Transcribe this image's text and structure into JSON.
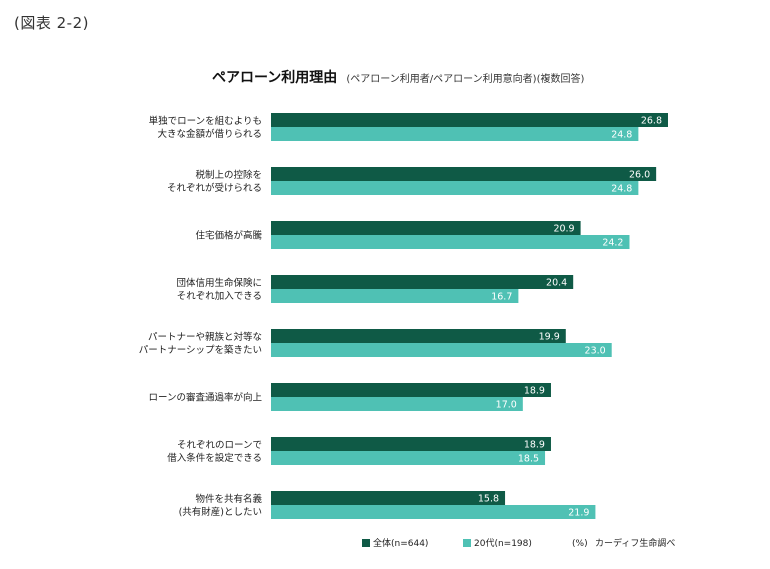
{
  "figure_label": "(図表 2-2)",
  "title": "ペアローン利用理由",
  "subtitle": "(ペアローン利用者/ペアローン利用意向者)(複数回答)",
  "chart_data": {
    "type": "bar",
    "orientation": "horizontal",
    "title": "ペアローン利用理由",
    "subtitle": "(ペアローン利用者/ペアローン利用意向者)(複数回答)",
    "unit": "(%)",
    "source": "カーディフ生命調べ",
    "categories": [
      [
        "単独でローンを組むよりも",
        "大きな金額が借りられる"
      ],
      [
        "税制上の控除を",
        "それぞれが受けられる"
      ],
      [
        "住宅価格が高騰"
      ],
      [
        "団体信用生命保険に",
        "それぞれ加入できる"
      ],
      [
        "パートナーや親族と対等な",
        "パートナーシップを築きたい"
      ],
      [
        "ローンの審査通過率が向上"
      ],
      [
        "それぞれのローンで",
        "借入条件を設定できる"
      ],
      [
        "物件を共有名義",
        "(共有財産)としたい"
      ]
    ],
    "series": [
      {
        "name": "全体(n=644)",
        "color": "#0f5a46",
        "values": [
          26.8,
          26.0,
          20.9,
          20.4,
          19.9,
          18.9,
          18.9,
          15.8
        ]
      },
      {
        "name": "20代(n=198)",
        "color": "#4fc1b4",
        "values": [
          24.8,
          24.8,
          24.2,
          16.7,
          23.0,
          17.0,
          18.5,
          21.9
        ]
      }
    ],
    "xlim": [
      0,
      26.8
    ],
    "grid": false,
    "legend": "bottom-right"
  }
}
